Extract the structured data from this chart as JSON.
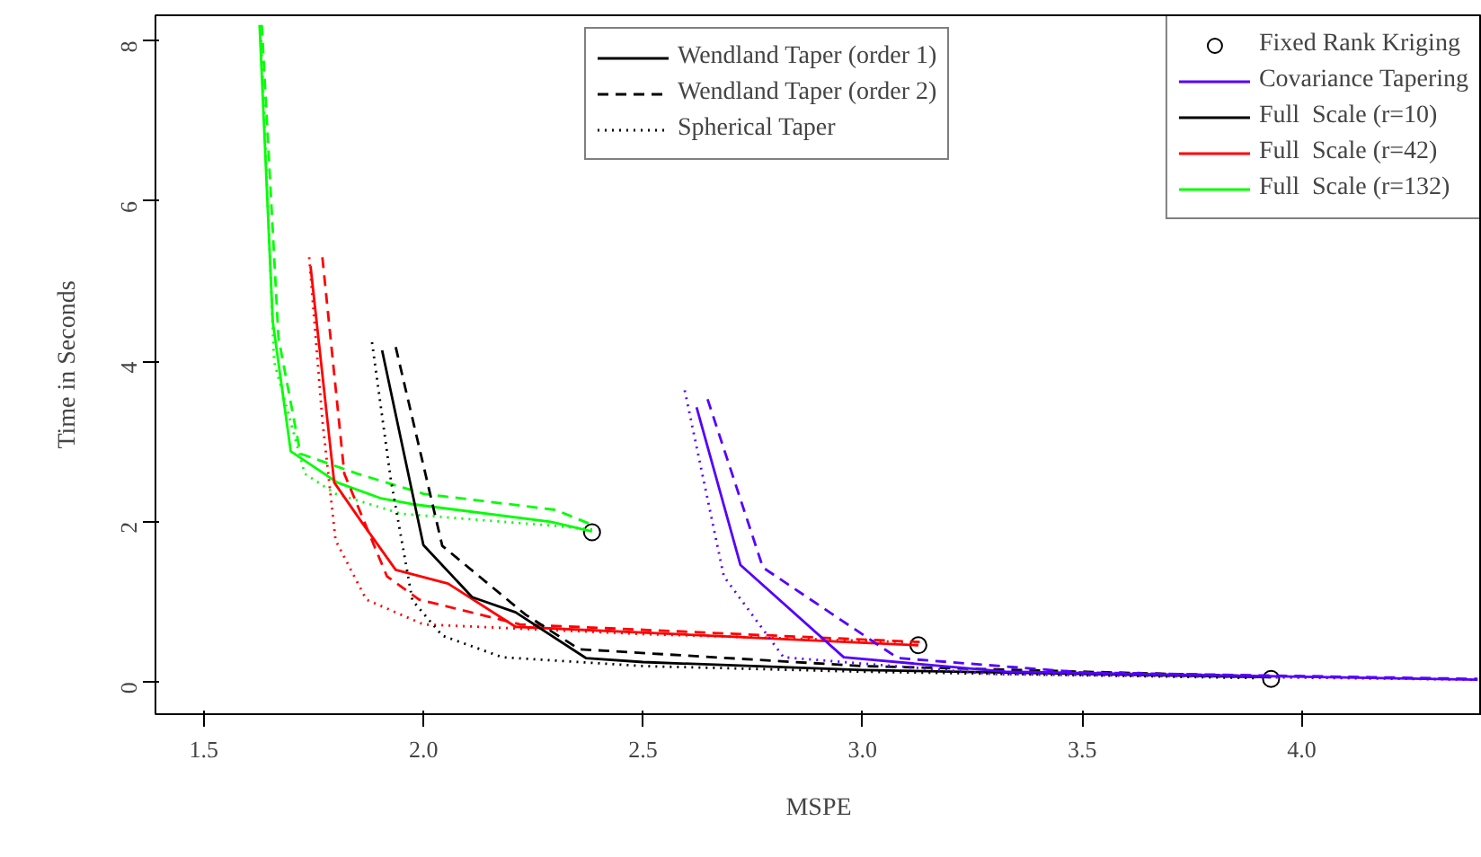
{
  "chart_data": {
    "type": "line",
    "xlabel": "MSPE",
    "ylabel": "Time in Seconds",
    "xlim": [
      1.39,
      4.41
    ],
    "ylim": [
      -0.4,
      8.32
    ],
    "xticks": [
      1.5,
      {
        "value": 2,
        "label": "2.0"
      },
      2.5,
      {
        "value": 3,
        "label": "3.0"
      },
      3.5,
      {
        "value": 4,
        "label": "4.0"
      }
    ],
    "yticks": [
      0,
      2,
      4,
      6,
      8
    ],
    "grid": false,
    "legend": "top right",
    "series": [
      {
        "name": "Wendland Taper (order 1)",
        "color": "#000000",
        "line_style": "solid"
      },
      {
        "name": "Wendland Taper (order 2)",
        "color": "#000000",
        "line_style": "dashed"
      },
      {
        "name": "Spherical Taper",
        "color": "#000000",
        "line_style": "dotted"
      },
      {
        "name": "Fixed Rank Kriging",
        "type": "scatter",
        "marker": "circle",
        "color": "#000000",
        "x": [
          2.384,
          3.127,
          3.93
        ],
        "values": [
          1.87,
          0.46,
          0.04
        ]
      },
      {
        "name": "Covariance Tapering",
        "color": "#5500ff",
        "line_style": "solid"
      },
      {
        "name": "Full  Scale (r=10)",
        "color": "#000000",
        "line_style": "solid"
      },
      {
        "name": "Full  Scale (r=42)",
        "color": "#ff0000",
        "line_style": "solid"
      },
      {
        "name": "Full  Scale (r=132)",
        "color": "#00ff00",
        "line_style": "solid"
      },
      {
        "color": "#00ff00",
        "line_style": "solid",
        "x": [
          1.627,
          1.657,
          1.698,
          1.804,
          1.905,
          1.975,
          2.29,
          2.384
        ],
        "values": [
          8.2,
          4.5,
          2.88,
          2.49,
          2.29,
          2.22,
          2.0,
          1.88
        ]
      },
      {
        "color": "#00ff00",
        "line_style": "dashed",
        "x": [
          1.632,
          1.67,
          1.72,
          1.85,
          2.0,
          2.3,
          2.39
        ],
        "values": [
          8.2,
          4.3,
          2.85,
          2.6,
          2.35,
          2.15,
          1.95
        ]
      },
      {
        "color": "#00ff00",
        "line_style": "dotted",
        "x": [
          1.63,
          1.66,
          1.73,
          1.8,
          1.95,
          2.3,
          2.39
        ],
        "values": [
          8.1,
          4.0,
          2.6,
          2.35,
          2.1,
          1.95,
          1.9
        ]
      },
      {
        "color": "#ff0000",
        "line_style": "solid",
        "x": [
          1.743,
          1.797,
          1.859,
          1.937,
          2.056,
          2.21,
          3.127
        ],
        "values": [
          5.19,
          2.49,
          2.0,
          1.4,
          1.23,
          0.69,
          0.46
        ]
      },
      {
        "color": "#ff0000",
        "line_style": "dashed",
        "x": [
          1.77,
          1.82,
          1.917,
          1.99,
          2.22,
          3.13
        ],
        "values": [
          5.3,
          2.6,
          1.32,
          1.03,
          0.72,
          0.5
        ]
      },
      {
        "color": "#ff0000",
        "line_style": "dotted",
        "x": [
          1.74,
          1.77,
          1.8,
          1.87,
          2.0,
          2.5,
          3.1
        ],
        "values": [
          5.3,
          3.27,
          1.77,
          1.03,
          0.72,
          0.6,
          0.5
        ]
      },
      {
        "color": "#000000",
        "line_style": "solid",
        "x": [
          1.906,
          2.0,
          2.111,
          2.21,
          2.37,
          2.5,
          3.0,
          3.93
        ],
        "values": [
          4.14,
          1.71,
          1.06,
          0.87,
          0.3,
          0.25,
          0.15,
          0.06
        ]
      },
      {
        "color": "#000000",
        "line_style": "dashed",
        "x": [
          1.937,
          2.043,
          2.233,
          2.355,
          3.0,
          3.93
        ],
        "values": [
          4.18,
          1.7,
          0.84,
          0.41,
          0.2,
          0.07
        ]
      },
      {
        "color": "#000000",
        "line_style": "dotted",
        "x": [
          1.883,
          1.926,
          1.975,
          2.043,
          2.18,
          2.5,
          3.0,
          3.9
        ],
        "values": [
          4.24,
          2.52,
          1.02,
          0.58,
          0.31,
          0.2,
          0.13,
          0.05
        ]
      },
      {
        "color": "#5500ff",
        "line_style": "solid",
        "x": [
          2.622,
          2.722,
          2.957,
          3.325,
          4.4
        ],
        "values": [
          3.43,
          1.46,
          0.31,
          0.13,
          0.03
        ]
      },
      {
        "color": "#5500ff",
        "line_style": "dashed",
        "x": [
          2.647,
          2.773,
          3.08,
          3.5,
          4.4
        ],
        "values": [
          3.53,
          1.43,
          0.3,
          0.12,
          0.04
        ]
      },
      {
        "color": "#5500ff",
        "line_style": "dotted",
        "x": [
          2.595,
          2.684,
          2.82,
          3.3,
          4.4
        ],
        "values": [
          3.64,
          1.32,
          0.31,
          0.1,
          0.03
        ]
      }
    ]
  }
}
